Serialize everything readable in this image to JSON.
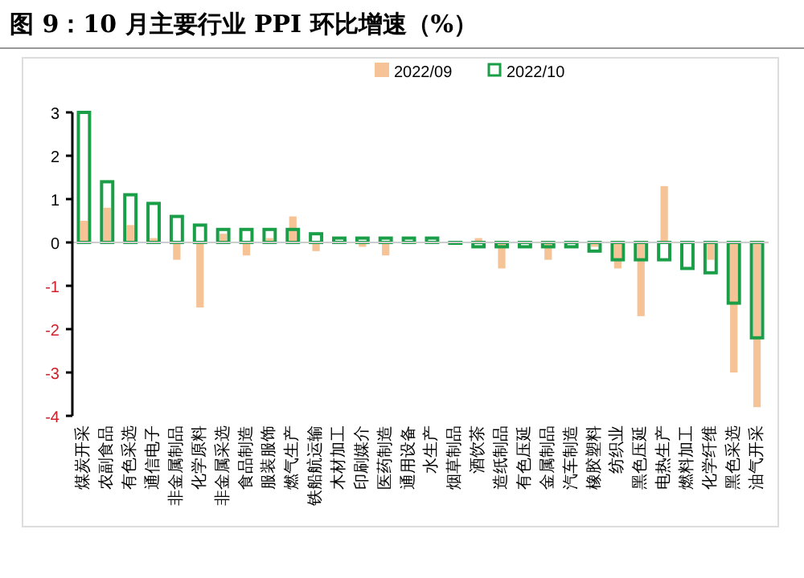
{
  "chart_data": {
    "type": "bar",
    "title": "图 9：10 月主要行业 PPI 环比增速（%）",
    "categories": [
      "煤炭开采",
      "农副食品",
      "有色采选",
      "通信电子",
      "非金属制品",
      "化学原料",
      "非金属采选",
      "食品制造",
      "服装服饰",
      "燃气生产",
      "铁船航运输",
      "木材加工",
      "印刷媒介",
      "医药制造",
      "通用设备",
      "水生产",
      "烟草制品",
      "酒饮茶",
      "造纸制品",
      "有色压延",
      "金属制品",
      "汽车制造",
      "橡胶塑料",
      "纺织业",
      "黑色压延",
      "电热生产",
      "燃料加工",
      "化学纤维",
      "黑色采选",
      "油气开采"
    ],
    "series": [
      {
        "name": "2022/09",
        "color": "#f5c396",
        "values": [
          0.5,
          0.8,
          0.4,
          0.1,
          -0.4,
          -1.5,
          0.2,
          -0.3,
          0.1,
          0.6,
          -0.2,
          0,
          -0.1,
          -0.3,
          0,
          0,
          0,
          0.1,
          -0.6,
          0,
          -0.4,
          0,
          -0.1,
          -0.6,
          -1.7,
          1.3,
          0,
          -0.4,
          -3.0,
          -3.8
        ]
      },
      {
        "name": "2022/10",
        "color": "#1a9e47",
        "values": [
          3.0,
          1.4,
          1.1,
          0.9,
          0.6,
          0.4,
          0.3,
          0.3,
          0.3,
          0.3,
          0.2,
          0.1,
          0.1,
          0.1,
          0.1,
          0.1,
          0,
          -0.1,
          -0.1,
          -0.1,
          -0.1,
          -0.1,
          -0.2,
          -0.4,
          -0.4,
          -0.4,
          -0.6,
          -0.7,
          -1.4,
          -2.2
        ]
      }
    ],
    "ylim": [
      -4,
      3
    ],
    "yticks": [
      -4,
      -3,
      -2,
      -1,
      0,
      1,
      2,
      3
    ],
    "legend": "top"
  }
}
